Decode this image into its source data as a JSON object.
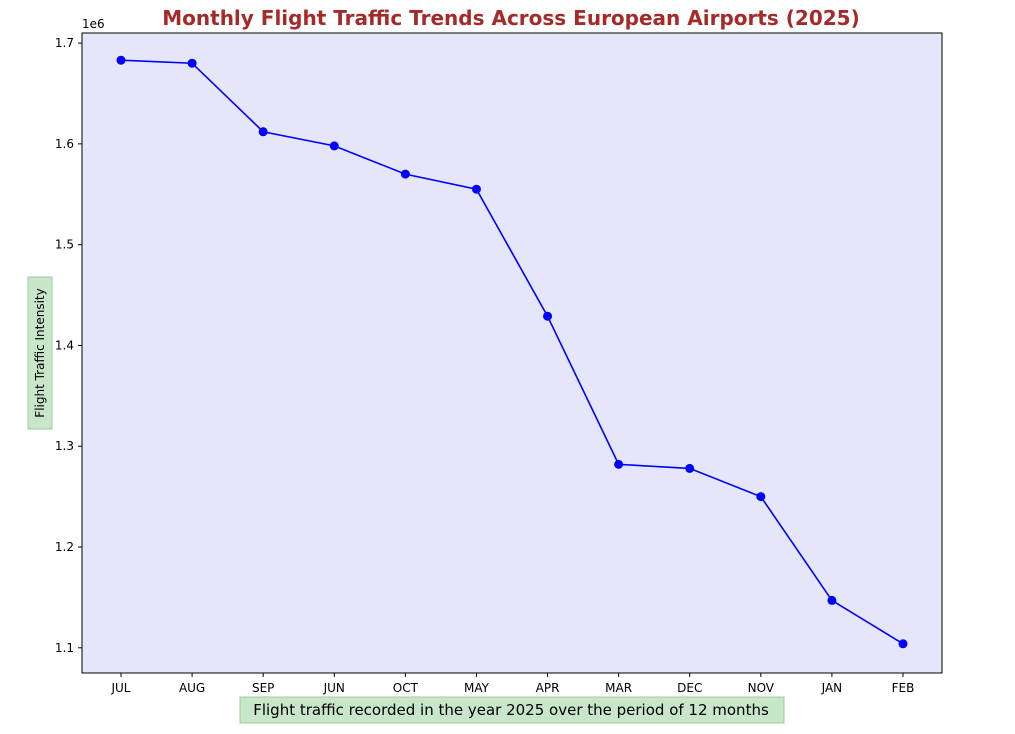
{
  "chart_data": {
    "type": "line",
    "title": "Monthly Flight Traffic Trends Across European Airports (2025)",
    "xlabel": "Flight traffic recorded in the year 2025 over the period of 12 months",
    "ylabel": "Flight Traffic Intensity",
    "y_offset_label": "1e6",
    "categories": [
      "JUL",
      "AUG",
      "SEP",
      "JUN",
      "OCT",
      "MAY",
      "APR",
      "MAR",
      "DEC",
      "NOV",
      "JAN",
      "FEB"
    ],
    "series": [
      {
        "values": [
          1683000,
          1680000,
          1612000,
          1598000,
          1570000,
          1555000,
          1429000,
          1282000,
          1278000,
          1250000,
          1147000,
          1104000
        ]
      }
    ],
    "ylim": [
      1075000,
      1710000
    ],
    "yticks": [
      1100000,
      1200000,
      1300000,
      1400000,
      1500000,
      1600000,
      1700000
    ],
    "ytick_labels": [
      "1.1",
      "1.2",
      "1.3",
      "1.4",
      "1.5",
      "1.6",
      "1.7"
    ],
    "grid": false,
    "colors": {
      "line": "#0000ff",
      "plot_background": "#e6e6fa",
      "title": "#a52a2a",
      "label_box": "#c8e6c9"
    }
  }
}
